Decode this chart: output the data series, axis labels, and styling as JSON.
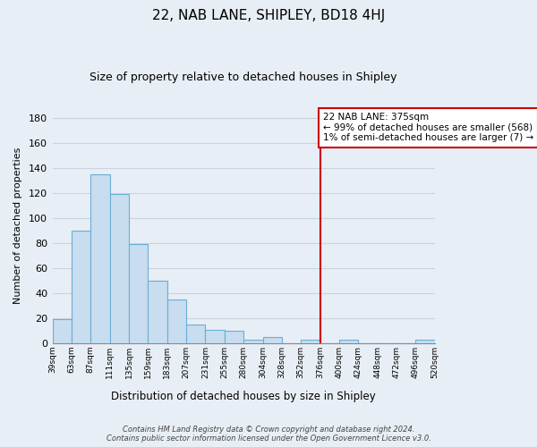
{
  "title": "22, NAB LANE, SHIPLEY, BD18 4HJ",
  "subtitle": "Size of property relative to detached houses in Shipley",
  "xlabel": "Distribution of detached houses by size in Shipley",
  "ylabel": "Number of detached properties",
  "bar_color": "#c8ddef",
  "bar_edge_color": "#6aaed6",
  "bar_values": [
    19,
    90,
    135,
    119,
    79,
    50,
    35,
    15,
    11,
    10,
    3,
    5,
    0,
    3,
    0,
    3,
    0,
    0,
    0,
    3
  ],
  "bar_labels": [
    "39sqm",
    "63sqm",
    "87sqm",
    "111sqm",
    "135sqm",
    "159sqm",
    "183sqm",
    "207sqm",
    "231sqm",
    "255sqm",
    "280sqm",
    "304sqm",
    "328sqm",
    "352sqm",
    "376sqm",
    "400sqm",
    "424sqm",
    "448sqm",
    "472sqm",
    "496sqm",
    "520sqm"
  ],
  "ylim": [
    0,
    188
  ],
  "yticks": [
    0,
    20,
    40,
    60,
    80,
    100,
    120,
    140,
    160,
    180
  ],
  "vline_pos": 14,
  "vline_color": "#cc0000",
  "annotation_title": "22 NAB LANE: 375sqm",
  "annotation_line1": "← 99% of detached houses are smaller (568)",
  "annotation_line2": "1% of semi-detached houses are larger (7) →",
  "annotation_box_color": "#ffffff",
  "annotation_box_edge": "#cc0000",
  "footer_line1": "Contains HM Land Registry data © Crown copyright and database right 2024.",
  "footer_line2": "Contains public sector information licensed under the Open Government Licence v3.0.",
  "background_color": "#e8eef5",
  "grid_color": "#c8d4e0",
  "title_fontsize": 11,
  "subtitle_fontsize": 9
}
